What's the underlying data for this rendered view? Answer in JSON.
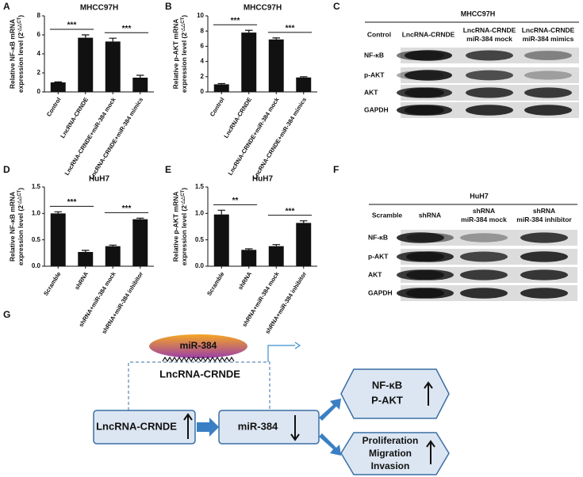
{
  "panel_labels": [
    "A",
    "B",
    "C",
    "D",
    "E",
    "F",
    "G"
  ],
  "chart_data": [
    {
      "type": "bar",
      "title": "MHCC97H",
      "y_label": {
        "line1": "Relative NF-κB mRNA",
        "line2": "expression level (2",
        "sup": "-△△CT",
        "close": ")"
      },
      "categories": [
        "Control",
        "LncRNA-CRNDE",
        "LncRNA-CRNDE+miR-384 mock",
        "LncRNA-CRNDE+miR-384 mimics"
      ],
      "values": [
        1.0,
        5.7,
        5.3,
        1.5
      ],
      "errors": [
        0.05,
        0.3,
        0.35,
        0.25
      ],
      "color": "#111111",
      "ylim": [
        0,
        8
      ],
      "yticks": [
        0,
        2,
        4,
        6,
        8
      ],
      "annotations": [
        "***",
        "***"
      ]
    },
    {
      "type": "bar",
      "title": "MHCC97H",
      "y_label": {
        "line1": "Relative p-AKT mRNA",
        "line2": "expression level (2",
        "sup": "-△△CT",
        "close": ")"
      },
      "categories": [
        "Control",
        "LncRNA-CRNDE",
        "LncRNA-CRNDE+miR-384 mock",
        "LncRNA-CRNDE+miR-384 mimics"
      ],
      "values": [
        1.0,
        7.8,
        6.9,
        1.9
      ],
      "errors": [
        0.1,
        0.3,
        0.2,
        0.1
      ],
      "color": "#111111",
      "ylim": [
        0,
        10
      ],
      "yticks": [
        0,
        2,
        4,
        6,
        8,
        10
      ],
      "annotations": [
        "***",
        "***"
      ]
    },
    {
      "type": "bar",
      "title": "HuH7",
      "y_label": {
        "line1": "Relative NF-κB mRNA",
        "line2": "expression level (2",
        "sup": "-△△CT",
        "close": ")"
      },
      "categories": [
        "Scramble",
        "shRNA",
        "shRNA+miR-384 mock",
        "shRNA+miR-384 inhibitor"
      ],
      "values": [
        1.0,
        0.27,
        0.38,
        0.89
      ],
      "errors": [
        0.03,
        0.03,
        0.02,
        0.02
      ],
      "color": "#111111",
      "ylim": [
        0,
        1.5
      ],
      "yticks": [
        {
          "value": 0,
          "label": "0.0"
        },
        0.5,
        {
          "value": 1,
          "label": "1.0"
        },
        1.5
      ],
      "annotations": [
        "***",
        "***"
      ]
    },
    {
      "type": "bar",
      "title": "HuH7",
      "y_label": {
        "line1": "Relative p-AKT mRNA",
        "line2": "expression level (2",
        "sup": "-△△CT",
        "close": ")"
      },
      "categories": [
        "Scramble",
        "shRNA",
        "shRNA+miR-384 mock",
        "shRNA+miR-384 inhibitor"
      ],
      "values": [
        0.98,
        0.31,
        0.38,
        0.82
      ],
      "errors": [
        0.08,
        0.02,
        0.03,
        0.04
      ],
      "color": "#111111",
      "ylim": [
        0,
        1.5
      ],
      "yticks": [
        {
          "value": 0,
          "label": "0.0"
        },
        0.5,
        {
          "value": 1,
          "label": "1.0"
        },
        1.5
      ],
      "annotations": [
        "**",
        "***"
      ]
    }
  ],
  "blots": [
    {
      "title": "MHCC97H",
      "lanes": [
        [
          "Control"
        ],
        [
          "LncRNA-CRNDE"
        ],
        [
          "LncRNA-CRNDE",
          "miR-384 mock"
        ],
        [
          "LncRNA-CRNDE",
          "miR-384 mimics"
        ]
      ],
      "rows": [
        "NF-κB",
        "p-AKT",
        "AKT",
        "GAPDH"
      ]
    },
    {
      "title": "HuH7",
      "lanes": [
        [
          "Scramble"
        ],
        [
          "shRNA"
        ],
        [
          "shRNA",
          "miR-384 mock"
        ],
        [
          "shRNA",
          "miR-384 inhibitor"
        ]
      ],
      "rows": [
        "NF-κB",
        "p-AKT",
        "AKT",
        "GAPDH"
      ]
    }
  ],
  "diagram": {
    "mirna": "miR-384",
    "lncrna_label": "LncRNA-CRNDE",
    "box_lncrna": "LncRNA-CRNDE",
    "box_mirna": "miR-384",
    "targets": [
      "NF-κB",
      "P-AKT"
    ],
    "outcomes": [
      "Proliferation",
      "Migration",
      "Invasion"
    ]
  }
}
